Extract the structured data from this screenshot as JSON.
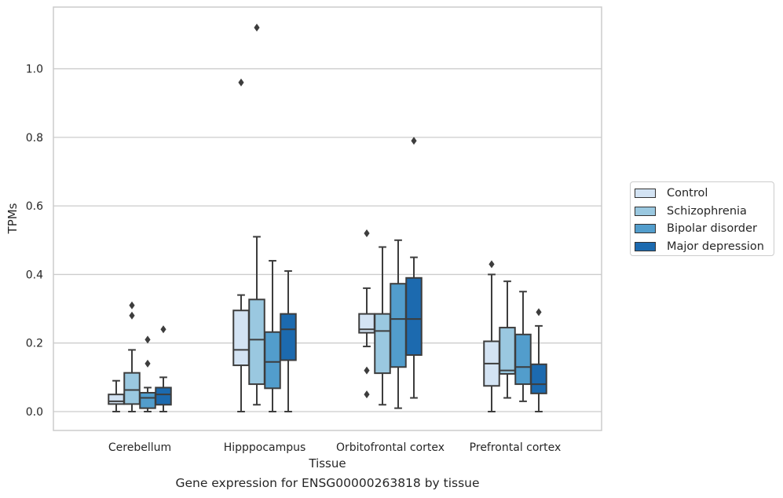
{
  "chart_data": {
    "type": "box",
    "caption": "Gene expression for ENSG00000263818 by tissue",
    "xlabel": "Tissue",
    "ylabel": "TPMs",
    "ylim": [
      -0.055,
      1.18
    ],
    "yticks": [
      "0.0",
      "0.2",
      "0.4",
      "0.6",
      "0.8",
      "1.0"
    ],
    "categories": [
      "Cerebellum",
      "Hipppocampus",
      "Orbitofrontal cortex",
      "Prefrontal cortex"
    ],
    "grid": true,
    "legend_position": "right",
    "series": [
      {
        "name": "Control",
        "color": "#d3e3f3",
        "boxes": [
          {
            "whislo": 0.0,
            "q1": 0.022,
            "med": 0.03,
            "q3": 0.05,
            "whishi": 0.09,
            "fliers": []
          },
          {
            "whislo": 0.0,
            "q1": 0.135,
            "med": 0.18,
            "q3": 0.295,
            "whishi": 0.34,
            "fliers": [
              0.96
            ]
          },
          {
            "whislo": 0.19,
            "q1": 0.23,
            "med": 0.24,
            "q3": 0.285,
            "whishi": 0.36,
            "fliers": [
              0.52,
              0.12,
              0.05
            ]
          },
          {
            "whislo": 0.0,
            "q1": 0.075,
            "med": 0.14,
            "q3": 0.205,
            "whishi": 0.4,
            "fliers": [
              0.43
            ]
          }
        ]
      },
      {
        "name": "Schizophrenia",
        "color": "#9ac8e0",
        "boxes": [
          {
            "whislo": 0.0,
            "q1": 0.022,
            "med": 0.063,
            "q3": 0.113,
            "whishi": 0.18,
            "fliers": [
              0.31,
              0.28
            ]
          },
          {
            "whislo": 0.02,
            "q1": 0.08,
            "med": 0.21,
            "q3": 0.327,
            "whishi": 0.51,
            "fliers": [
              1.12
            ]
          },
          {
            "whislo": 0.02,
            "q1": 0.112,
            "med": 0.235,
            "q3": 0.285,
            "whishi": 0.48,
            "fliers": []
          },
          {
            "whislo": 0.04,
            "q1": 0.11,
            "med": 0.12,
            "q3": 0.245,
            "whishi": 0.38,
            "fliers": []
          }
        ]
      },
      {
        "name": "Bipolar disorder",
        "color": "#529dcc",
        "boxes": [
          {
            "whislo": 0.0,
            "q1": 0.01,
            "med": 0.04,
            "q3": 0.055,
            "whishi": 0.07,
            "fliers": [
              0.21,
              0.14
            ]
          },
          {
            "whislo": 0.0,
            "q1": 0.068,
            "med": 0.145,
            "q3": 0.232,
            "whishi": 0.44,
            "fliers": []
          },
          {
            "whislo": 0.01,
            "q1": 0.13,
            "med": 0.27,
            "q3": 0.373,
            "whishi": 0.5,
            "fliers": []
          },
          {
            "whislo": 0.03,
            "q1": 0.08,
            "med": 0.13,
            "q3": 0.225,
            "whishi": 0.35,
            "fliers": []
          }
        ]
      },
      {
        "name": "Major depression",
        "color": "#1c6aaf",
        "boxes": [
          {
            "whislo": 0.0,
            "q1": 0.02,
            "med": 0.05,
            "q3": 0.07,
            "whishi": 0.1,
            "fliers": [
              0.24
            ]
          },
          {
            "whislo": 0.0,
            "q1": 0.15,
            "med": 0.24,
            "q3": 0.285,
            "whishi": 0.41,
            "fliers": []
          },
          {
            "whislo": 0.04,
            "q1": 0.165,
            "med": 0.27,
            "q3": 0.39,
            "whishi": 0.45,
            "fliers": [
              0.79
            ]
          },
          {
            "whislo": 0.0,
            "q1": 0.053,
            "med": 0.08,
            "q3": 0.138,
            "whishi": 0.25,
            "fliers": [
              0.29
            ]
          }
        ]
      }
    ]
  }
}
